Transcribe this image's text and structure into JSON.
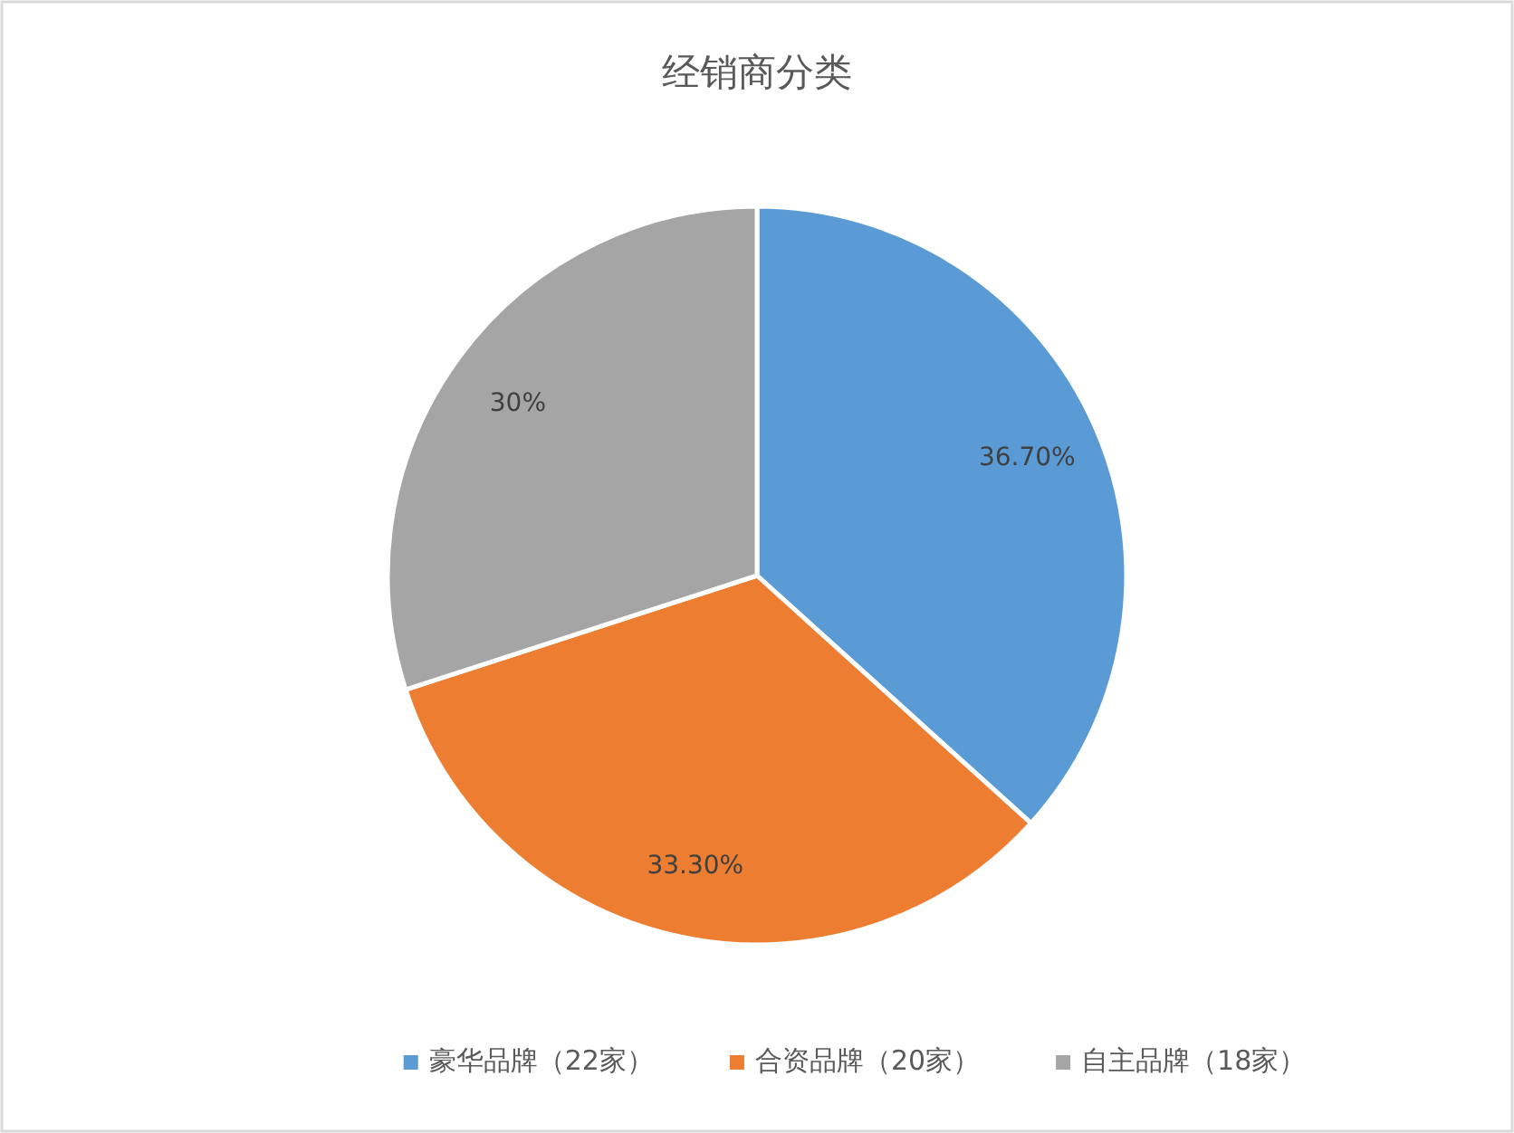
{
  "chart_data": {
    "type": "pie",
    "title": "经销商分类",
    "categories": [
      "豪华品牌（22家）",
      "合资品牌（20家）",
      "自主品牌（18家）"
    ],
    "values": [
      36.7,
      33.3,
      30
    ],
    "value_labels": [
      "36.70%",
      "33.30%",
      "30%"
    ],
    "colors": [
      "#5b9bd5",
      "#ed7d31",
      "#a5a5a5"
    ],
    "legend": "bottom"
  }
}
